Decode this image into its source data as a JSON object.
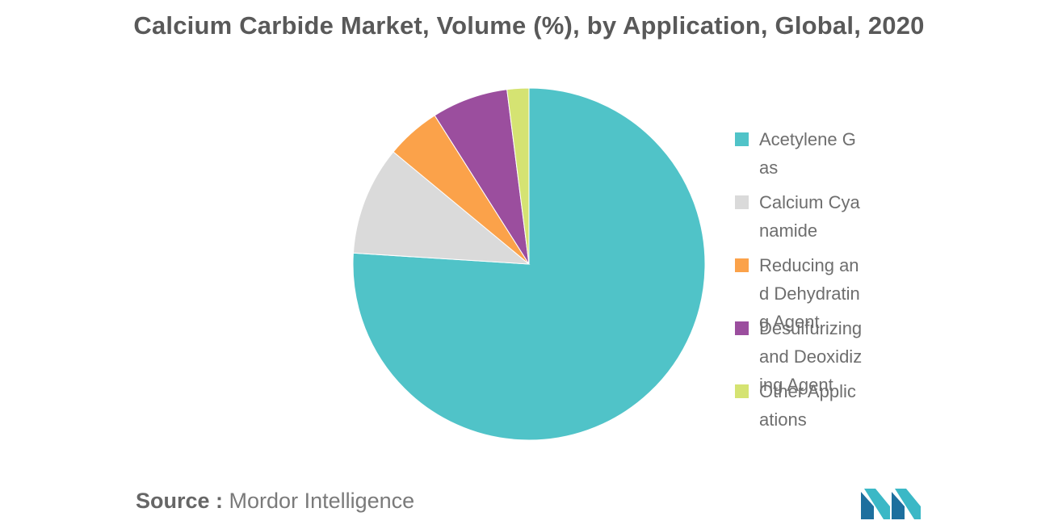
{
  "chart_data": {
    "type": "pie",
    "title": "Calcium Carbide Market, Volume (%), by Application, Global, 2020",
    "slices": [
      {
        "label": "Acetylene Gas",
        "value": 76,
        "color": "#50C3C8"
      },
      {
        "label": "Calcium Cyanamide",
        "value": 10,
        "color": "#DADADA"
      },
      {
        "label": "Reducing and Dehydrating Agent",
        "value": 5,
        "color": "#FBA24A"
      },
      {
        "label": "Desulfurizing and Deoxidizing Agent",
        "value": 7,
        "color": "#9B4E9E"
      },
      {
        "label": "Other Applications",
        "value": 2,
        "color": "#D5E372"
      }
    ],
    "legend_position": "right",
    "start_angle": "12 o'clock",
    "direction": "clockwise"
  },
  "source": {
    "label": "Source :",
    "text": "Mordor Intelligence"
  },
  "logo": {
    "icon": "mordor-intelligence-logo",
    "colors": [
      "#1D6F9E",
      "#3BB8C6"
    ]
  }
}
